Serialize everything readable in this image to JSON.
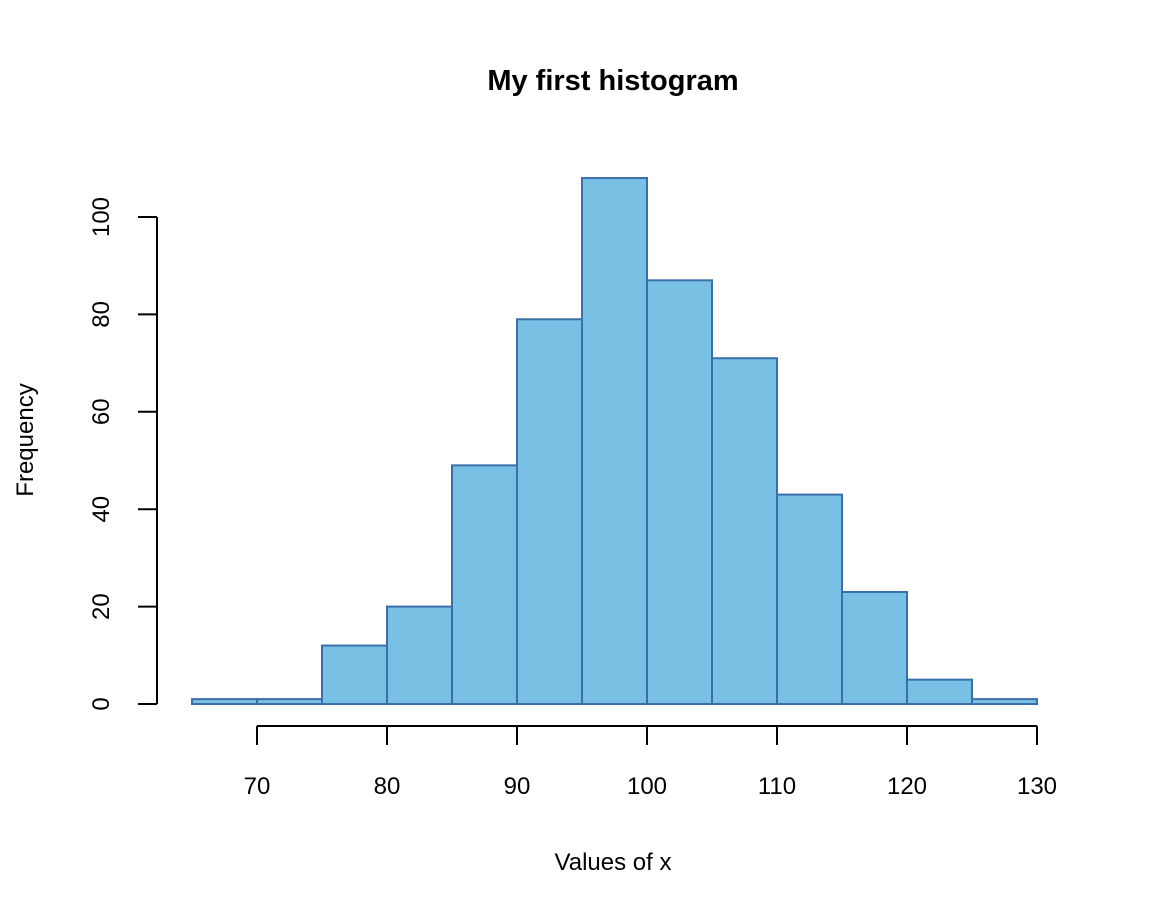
{
  "chart_data": {
    "type": "bar",
    "title": "My first histogram",
    "xlabel": "Values of x",
    "ylabel": "Frequency",
    "bin_edges": [
      65,
      70,
      75,
      80,
      85,
      90,
      95,
      100,
      105,
      110,
      115,
      120,
      125,
      130
    ],
    "values": [
      1,
      1,
      12,
      20,
      49,
      79,
      108,
      87,
      71,
      43,
      23,
      5,
      1
    ],
    "xlim": [
      65,
      130
    ],
    "ylim": [
      0,
      108
    ],
    "xticks": [
      70,
      80,
      90,
      100,
      110,
      120,
      130
    ],
    "yticks": [
      0,
      20,
      40,
      60,
      80,
      100
    ],
    "grid": false,
    "colors": {
      "fill": "#78c1e5",
      "border": "#3a6faa"
    }
  }
}
